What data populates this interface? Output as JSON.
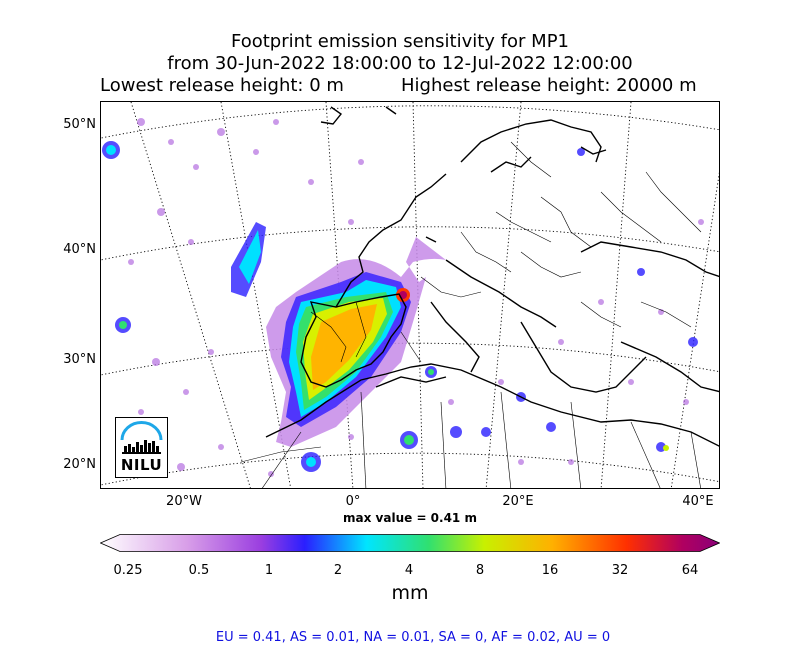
{
  "title": {
    "line1": "Footprint emission sensitivity for MP1",
    "line2": "from 30-Jun-2022 18:00:00 to 12-Jul-2022 12:00:00",
    "lowest": "Lowest release height: 0 m",
    "highest": "Highest release height: 20000 m"
  },
  "map": {
    "lat_labels": [
      "50°N",
      "40°N",
      "30°N",
      "20°N"
    ],
    "lon_labels": [
      "20°W",
      "0°",
      "20°E",
      "40°E"
    ],
    "max_value": "max value = 0.41 m",
    "logo_text": "NILU"
  },
  "colorbar": {
    "ticks": [
      "0.25",
      "0.5",
      "1",
      "2",
      "4",
      "8",
      "16",
      "32",
      "64"
    ],
    "unit": "mm",
    "colors": [
      "#ffffff",
      "#d89ee8",
      "#9a3ee0",
      "#2a1fff",
      "#00e5ff",
      "#30e070",
      "#c8f000",
      "#ffb000",
      "#ff3000",
      "#b00060",
      "#8a0078"
    ]
  },
  "regions": "EU = 0.41,  AS = 0.01,  NA = 0.01,  SA = 0,  AF = 0.02,  AU = 0"
}
